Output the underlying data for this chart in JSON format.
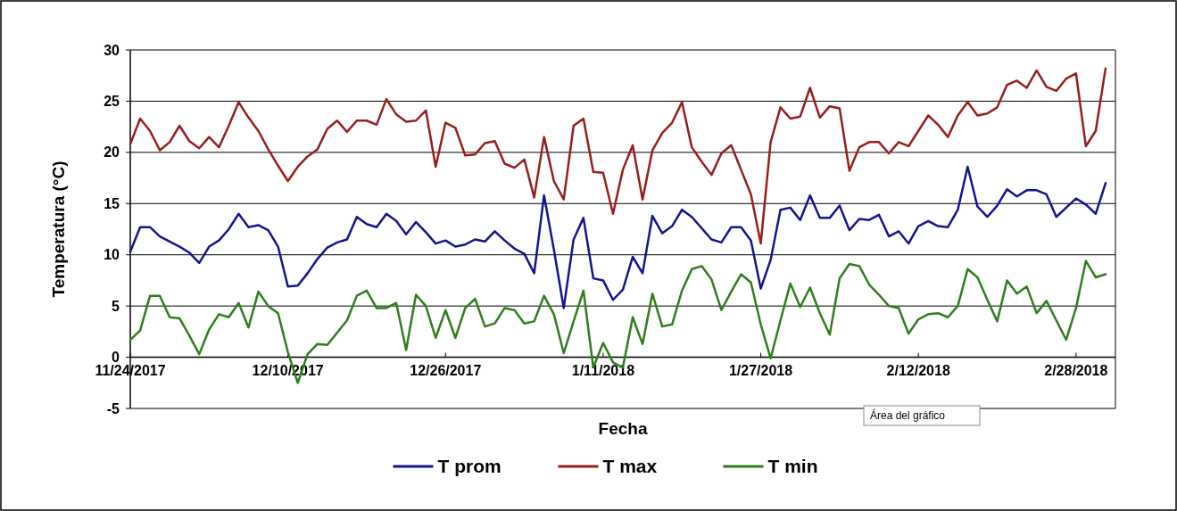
{
  "chart_data": {
    "type": "line",
    "xlabel": "Fecha",
    "ylabel": "Temperatura (°C)",
    "x": [
      "2017-11-24",
      "2017-11-25",
      "2017-11-26",
      "2017-11-27",
      "2017-11-28",
      "2017-11-29",
      "2017-11-30",
      "2017-12-01",
      "2017-12-02",
      "2017-12-03",
      "2017-12-04",
      "2017-12-05",
      "2017-12-06",
      "2017-12-07",
      "2017-12-08",
      "2017-12-09",
      "2017-12-10",
      "2017-12-11",
      "2017-12-12",
      "2017-12-13",
      "2017-12-14",
      "2017-12-15",
      "2017-12-16",
      "2017-12-17",
      "2017-12-18",
      "2017-12-19",
      "2017-12-20",
      "2017-12-21",
      "2017-12-22",
      "2017-12-23",
      "2017-12-24",
      "2017-12-25",
      "2017-12-26",
      "2017-12-27",
      "2017-12-28",
      "2017-12-29",
      "2017-12-30",
      "2017-12-31",
      "2018-01-01",
      "2018-01-02",
      "2018-01-03",
      "2018-01-04",
      "2018-01-05",
      "2018-01-06",
      "2018-01-07",
      "2018-01-08",
      "2018-01-09",
      "2018-01-10",
      "2018-01-11",
      "2018-01-12",
      "2018-01-13",
      "2018-01-14",
      "2018-01-15",
      "2018-01-16",
      "2018-01-17",
      "2018-01-18",
      "2018-01-19",
      "2018-01-20",
      "2018-01-21",
      "2018-01-22",
      "2018-01-23",
      "2018-01-24",
      "2018-01-25",
      "2018-01-26",
      "2018-01-27",
      "2018-01-28",
      "2018-01-29",
      "2018-01-30",
      "2018-01-31",
      "2018-02-01",
      "2018-02-02",
      "2018-02-03",
      "2018-02-04",
      "2018-02-05",
      "2018-02-06",
      "2018-02-07",
      "2018-02-08",
      "2018-02-09",
      "2018-02-10",
      "2018-02-11",
      "2018-02-12",
      "2018-02-13",
      "2018-02-14",
      "2018-02-15",
      "2018-02-16",
      "2018-02-17",
      "2018-02-18",
      "2018-02-19",
      "2018-02-20",
      "2018-02-21",
      "2018-02-22",
      "2018-02-23",
      "2018-02-24",
      "2018-02-25",
      "2018-02-26",
      "2018-02-27",
      "2018-02-28",
      "2018-03-01",
      "2018-03-02",
      "2018-03-03"
    ],
    "series": [
      {
        "name": "T prom",
        "color": "#14148c",
        "values": [
          10.3,
          12.7,
          12.7,
          11.8,
          11.3,
          10.8,
          10.2,
          9.2,
          10.8,
          11.4,
          12.5,
          14.0,
          12.7,
          12.9,
          12.4,
          10.8,
          6.9,
          7.0,
          8.2,
          9.6,
          10.7,
          11.2,
          11.5,
          13.7,
          13.0,
          12.7,
          14.0,
          13.3,
          12.0,
          13.2,
          12.2,
          11.1,
          11.4,
          10.8,
          11.0,
          11.5,
          11.3,
          12.3,
          11.4,
          10.6,
          10.1,
          8.2,
          15.8,
          10.5,
          4.8,
          11.5,
          13.6,
          7.7,
          7.5,
          5.6,
          6.6,
          9.8,
          8.2,
          13.8,
          12.1,
          12.8,
          14.4,
          13.7,
          12.6,
          11.5,
          11.2,
          12.7,
          12.7,
          11.4,
          6.7,
          9.5,
          14.4,
          14.6,
          13.4,
          15.8,
          13.6,
          13.6,
          14.8,
          12.4,
          13.5,
          13.4,
          13.9,
          11.8,
          12.3,
          11.1,
          12.8,
          13.3,
          12.8,
          12.7,
          14.4,
          18.6,
          14.7,
          13.7,
          14.8,
          16.4,
          15.7,
          16.3,
          16.3,
          15.9,
          13.7,
          14.6,
          15.5,
          14.9,
          14.0,
          17.0
        ]
      },
      {
        "name": "T max",
        "color": "#961e1e",
        "values": [
          20.8,
          23.3,
          22.1,
          20.2,
          21.0,
          22.6,
          21.1,
          20.4,
          21.5,
          20.5,
          22.6,
          24.9,
          23.4,
          22.1,
          20.3,
          18.7,
          17.2,
          18.6,
          19.6,
          20.3,
          22.3,
          23.1,
          22.0,
          23.1,
          23.1,
          22.7,
          25.2,
          23.7,
          23.0,
          23.1,
          24.1,
          18.6,
          22.9,
          22.4,
          19.7,
          19.8,
          20.9,
          21.1,
          18.9,
          18.5,
          19.3,
          15.6,
          21.5,
          17.2,
          15.4,
          22.6,
          23.3,
          18.1,
          18.0,
          14.0,
          18.3,
          20.7,
          15.4,
          20.2,
          21.9,
          22.9,
          24.9,
          20.5,
          19.1,
          17.8,
          19.9,
          20.7,
          18.3,
          15.9,
          11.1,
          21.0,
          24.4,
          23.3,
          23.5,
          26.3,
          23.4,
          24.5,
          24.3,
          18.2,
          20.5,
          21.0,
          21.0,
          19.9,
          21.0,
          20.6,
          22.1,
          23.6,
          22.7,
          21.5,
          23.6,
          24.9,
          23.6,
          23.8,
          24.4,
          26.6,
          27.0,
          26.3,
          28.0,
          26.4,
          26.0,
          27.2,
          27.7,
          20.6,
          22.1,
          28.2
        ]
      },
      {
        "name": "T min",
        "color": "#2e7d1e",
        "values": [
          1.7,
          2.6,
          6.0,
          6.0,
          3.9,
          3.8,
          2.1,
          0.3,
          2.7,
          4.2,
          3.9,
          5.3,
          2.9,
          6.4,
          5.0,
          4.3,
          0.5,
          -2.5,
          0.3,
          1.3,
          1.2,
          2.4,
          3.6,
          6.0,
          6.5,
          4.8,
          4.8,
          5.3,
          0.7,
          6.1,
          5.0,
          1.9,
          4.6,
          1.9,
          4.8,
          5.7,
          3.0,
          3.3,
          4.8,
          4.6,
          3.3,
          3.5,
          6.0,
          4.2,
          0.4,
          3.5,
          6.5,
          -1.0,
          1.4,
          -0.5,
          -1.0,
          3.9,
          1.3,
          6.2,
          3.0,
          3.2,
          6.5,
          8.6,
          8.9,
          7.6,
          4.6,
          6.4,
          8.1,
          7.3,
          3.2,
          -0.1,
          3.6,
          7.2,
          4.9,
          6.8,
          4.3,
          2.2,
          7.7,
          9.1,
          8.9,
          7.1,
          6.1,
          5.0,
          4.8,
          2.3,
          3.7,
          4.2,
          4.3,
          3.9,
          5.0,
          8.6,
          7.8,
          5.6,
          3.5,
          7.5,
          6.2,
          6.9,
          4.3,
          5.5,
          3.6,
          1.7,
          4.8,
          9.4,
          7.8,
          8.1
        ]
      }
    ],
    "xlim": [
      "2017-11-24",
      "2018-03-04"
    ],
    "xticks": [
      {
        "value": "2017-11-24",
        "label": "11/24/2017"
      },
      {
        "value": "2017-12-10",
        "label": "12/10/2017"
      },
      {
        "value": "2017-12-26",
        "label": "12/26/2017"
      },
      {
        "value": "2018-01-11",
        "label": "1/11/2018"
      },
      {
        "value": "2018-01-27",
        "label": "1/27/2018"
      },
      {
        "value": "2018-02-12",
        "label": "2/12/2018"
      },
      {
        "value": "2018-02-28",
        "label": "2/28/2018"
      }
    ],
    "ylim": [
      -5,
      30
    ],
    "yticks": [
      -5,
      0,
      5,
      10,
      15,
      20,
      25,
      30
    ],
    "grid": "y",
    "legend": "bottom",
    "annotations": [
      "Área del gráfico"
    ]
  }
}
